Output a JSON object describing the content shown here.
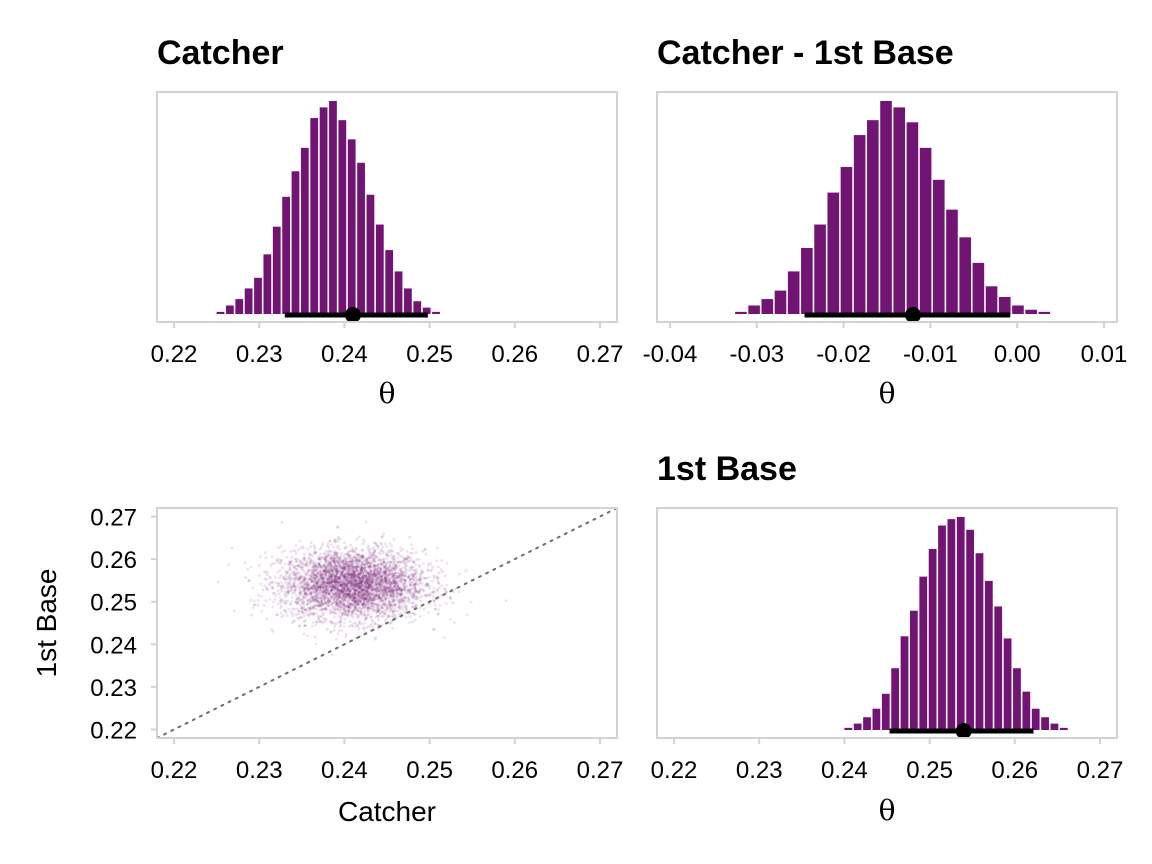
{
  "chart_data": [
    {
      "id": "catcher",
      "type": "histogram",
      "title": "Catcher",
      "xlabel": "θ",
      "xlim": [
        0.218,
        0.272
      ],
      "xticks": [
        0.22,
        0.23,
        0.24,
        0.25,
        0.26,
        0.27
      ],
      "xtick_labels": [
        "0.22",
        "0.23",
        "0.24",
        "0.25",
        "0.26",
        "0.27"
      ],
      "bin_width": 0.0011,
      "bin_start": 0.225,
      "counts": [
        0.01,
        0.04,
        0.07,
        0.12,
        0.17,
        0.28,
        0.41,
        0.55,
        0.67,
        0.78,
        0.92,
        0.97,
        1.0,
        0.91,
        0.82,
        0.71,
        0.56,
        0.42,
        0.3,
        0.2,
        0.12,
        0.06,
        0.03,
        0.01
      ],
      "point_estimate": 0.241,
      "interval": [
        0.233,
        0.2498
      ],
      "color": "#721473"
    },
    {
      "id": "diff",
      "type": "histogram",
      "title": "Catcher - 1st Base",
      "xlabel": "θ",
      "xlim": [
        -0.0415,
        0.0115
      ],
      "xticks": [
        -0.04,
        -0.03,
        -0.02,
        -0.01,
        0.0,
        0.01
      ],
      "xtick_labels": [
        "-0.04",
        "-0.03",
        "-0.02",
        "-0.01",
        "0.00",
        "0.01"
      ],
      "bin_width": 0.00152,
      "bin_start": -0.0325,
      "counts": [
        0.01,
        0.04,
        0.07,
        0.11,
        0.2,
        0.31,
        0.42,
        0.57,
        0.69,
        0.84,
        0.91,
        1.0,
        0.97,
        0.9,
        0.78,
        0.63,
        0.49,
        0.36,
        0.24,
        0.13,
        0.08,
        0.04,
        0.02,
        0.01
      ],
      "point_estimate": -0.012,
      "interval": [
        -0.0245,
        -0.0008
      ],
      "color": "#721473"
    },
    {
      "id": "scatter",
      "type": "scatter",
      "title": "",
      "xlabel": "Catcher",
      "ylabel": "1st Base",
      "xlim": [
        0.218,
        0.272
      ],
      "ylim": [
        0.218,
        0.272
      ],
      "xticks": [
        0.22,
        0.23,
        0.24,
        0.25,
        0.26,
        0.27
      ],
      "xtick_labels": [
        "0.22",
        "0.23",
        "0.24",
        "0.25",
        "0.26",
        "0.27"
      ],
      "yticks": [
        0.22,
        0.23,
        0.24,
        0.25,
        0.26,
        0.27
      ],
      "ytick_labels": [
        "0.22",
        "0.23",
        "0.24",
        "0.25",
        "0.26",
        "0.27"
      ],
      "center": [
        0.241,
        0.254
      ],
      "sd": [
        0.0042,
        0.0041
      ],
      "n_points": 4000,
      "reference_line": "y = x",
      "color": "#721473"
    },
    {
      "id": "firstbase",
      "type": "histogram",
      "title": "1st Base",
      "xlabel": "θ",
      "xlim": [
        0.218,
        0.272
      ],
      "xticks": [
        0.22,
        0.23,
        0.24,
        0.25,
        0.26,
        0.27
      ],
      "xtick_labels": [
        "0.22",
        "0.23",
        "0.24",
        "0.25",
        "0.26",
        "0.27"
      ],
      "bin_width": 0.0011,
      "bin_start": 0.24,
      "counts": [
        0.01,
        0.03,
        0.06,
        0.1,
        0.17,
        0.29,
        0.44,
        0.56,
        0.72,
        0.85,
        0.96,
        0.99,
        1.0,
        0.94,
        0.83,
        0.7,
        0.58,
        0.43,
        0.29,
        0.18,
        0.1,
        0.06,
        0.03,
        0.01
      ],
      "point_estimate": 0.254,
      "interval": [
        0.2453,
        0.2622
      ],
      "color": "#721473"
    }
  ]
}
